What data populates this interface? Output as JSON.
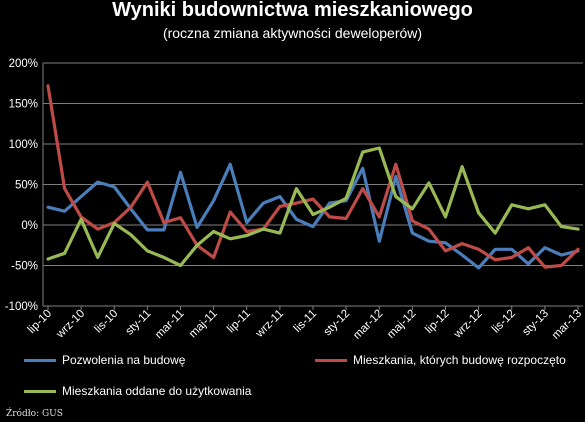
{
  "chart_data": {
    "type": "line",
    "title": "Wyniki budownictwa mieszkaniowego",
    "subtitle": "(roczna zmiana aktywności deweloperów)",
    "y_ticks": [
      "200%",
      "150%",
      "100%",
      "50%",
      "0%",
      "-50%",
      "-100%"
    ],
    "ylim": [
      -100,
      200
    ],
    "x_tick_labels": [
      "lip-10",
      "wrz-10",
      "lis-10",
      "sty-11",
      "mar-11",
      "maj-11",
      "lip-11",
      "wrz-11",
      "lis-11",
      "sty-12",
      "mar-12",
      "maj-12",
      "lip-12",
      "wrz-12",
      "lis-12",
      "sty-13",
      "mar-13"
    ],
    "categories": [
      "lip-10",
      "sie-10",
      "wrz-10",
      "paź-10",
      "lis-10",
      "gru-10",
      "sty-11",
      "lut-11",
      "mar-11",
      "kwi-11",
      "maj-11",
      "cze-11",
      "lip-11",
      "sie-11",
      "wrz-11",
      "paź-11",
      "lis-11",
      "gru-11",
      "sty-12",
      "lut-12",
      "mar-12",
      "kwi-12",
      "maj-12",
      "cze-12",
      "lip-12",
      "sie-12",
      "wrz-12",
      "paź-12",
      "lis-12",
      "gru-12",
      "sty-13",
      "lut-13",
      "mar-13"
    ],
    "grid": true,
    "series": [
      {
        "name": "Pozwolenia na budowę",
        "color": "#4a7ebb",
        "values": [
          22,
          17,
          35,
          53,
          47,
          20,
          -6,
          -6,
          65,
          -3,
          30,
          75,
          3,
          27,
          35,
          7,
          -2,
          27,
          30,
          70,
          -20,
          60,
          -10,
          -20,
          -22,
          -37,
          -53,
          -30,
          -30,
          -48,
          -28,
          -37,
          -32
        ]
      },
      {
        "name": "Mieszkania, których budowę rozpoczęto",
        "color": "#be4b48",
        "values": [
          172,
          45,
          10,
          -5,
          3,
          22,
          53,
          3,
          9,
          -25,
          -40,
          16,
          -8,
          -5,
          23,
          27,
          32,
          10,
          8,
          45,
          10,
          75,
          5,
          -5,
          -32,
          -23,
          -30,
          -43,
          -40,
          -28,
          -52,
          -50,
          -30
        ]
      },
      {
        "name": "Mieszkania oddane do użytkowania",
        "color": "#98b954",
        "values": [
          -42,
          -35,
          7,
          -40,
          2,
          -12,
          -32,
          -40,
          -50,
          -25,
          -8,
          -17,
          -13,
          -5,
          -10,
          45,
          13,
          22,
          33,
          90,
          95,
          35,
          20,
          52,
          10,
          72,
          15,
          -10,
          25,
          20,
          25,
          -2,
          -5
        ]
      }
    ]
  },
  "legend": [
    {
      "label": "Pozwolenia na budowę",
      "color": "#4a7ebb"
    },
    {
      "label": "Mieszkania, których budowę rozpoczęto",
      "color": "#be4b48"
    },
    {
      "label": "Mieszkania oddane do użytkowania",
      "color": "#98b954"
    }
  ],
  "source": "Źródło: GUS"
}
